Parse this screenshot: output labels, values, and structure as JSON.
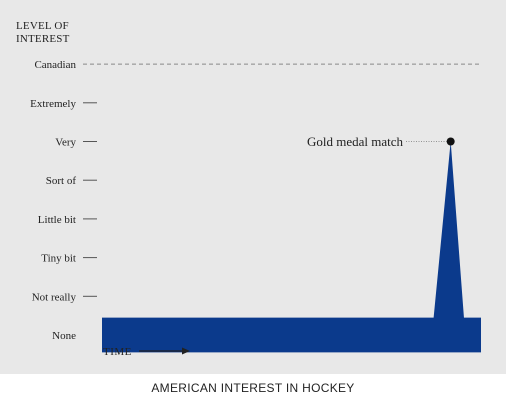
{
  "chart_data": {
    "type": "area",
    "title": "",
    "ylabel": "LEVEL OF\nINTEREST",
    "xlabel": "TIME",
    "levels": [
      "None",
      "Not really",
      "Tiny bit",
      "Little bit",
      "Sort of",
      "Very",
      "Extremely",
      "Canadian"
    ],
    "ylim": [
      0,
      7
    ],
    "xlim": [
      0,
      100
    ],
    "series": [
      {
        "x": [
          0,
          0,
          87.5,
          92,
          95.5,
          100,
          100
        ],
        "y": [
          -0.45,
          0.45,
          0.45,
          5,
          0.45,
          0.45,
          -0.45
        ]
      }
    ],
    "reference_line": {
      "level": "Canadian",
      "value": 7,
      "style": "dashed"
    },
    "annotation": {
      "text": "Gold medal match",
      "x": 92,
      "y": 5
    },
    "colors": {
      "fill": "#0b3a8c",
      "panel": "#e8e8e8",
      "dashed": "#888888",
      "text": "#222222"
    }
  },
  "caption": "AMERICAN INTEREST IN HOCKEY"
}
